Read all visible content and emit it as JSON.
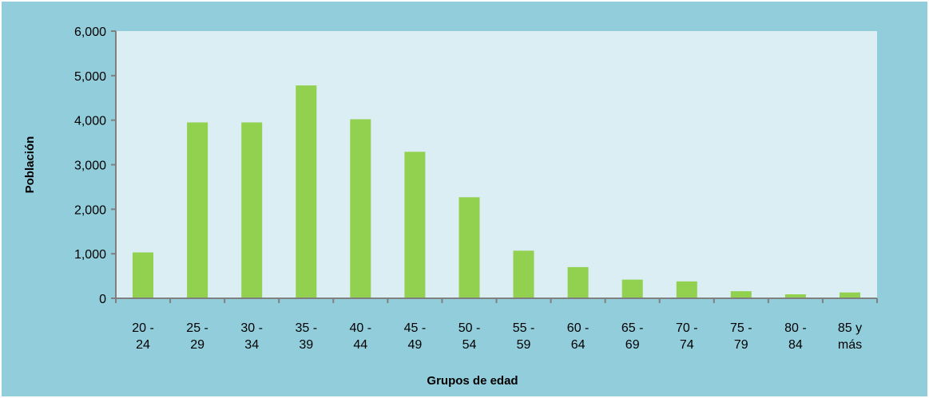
{
  "chart_data": {
    "type": "bar",
    "title": "",
    "xlabel": "Grupos de edad",
    "ylabel": "Población",
    "ylim": [
      0,
      6000
    ],
    "yticks": [
      0,
      1000,
      2000,
      3000,
      4000,
      5000,
      6000
    ],
    "ytick_labels": [
      "0",
      "1,000",
      "2,000",
      "3,000",
      "4,000",
      "5,000",
      "6,000"
    ],
    "categories": [
      [
        "20 -",
        "24"
      ],
      [
        "25 -",
        "29"
      ],
      [
        "30 -",
        "34"
      ],
      [
        "35 -",
        "39"
      ],
      [
        "40 -",
        "44"
      ],
      [
        "45 -",
        "49"
      ],
      [
        "50 -",
        "54"
      ],
      [
        "55 -",
        "59"
      ],
      [
        "60 -",
        "64"
      ],
      [
        "65 -",
        "69"
      ],
      [
        "70 -",
        "74"
      ],
      [
        "75 -",
        "79"
      ],
      [
        "80 -",
        "84"
      ],
      [
        "85 y",
        "más"
      ]
    ],
    "values": [
      1030,
      3950,
      3950,
      4780,
      4020,
      3290,
      2270,
      1070,
      700,
      420,
      380,
      160,
      90,
      130
    ],
    "grid": false,
    "legend": "none",
    "colors": {
      "outer_background": "#92cddc",
      "plot_background": "#dbeef3",
      "bar": "#92d050",
      "axis": "#808080"
    }
  }
}
